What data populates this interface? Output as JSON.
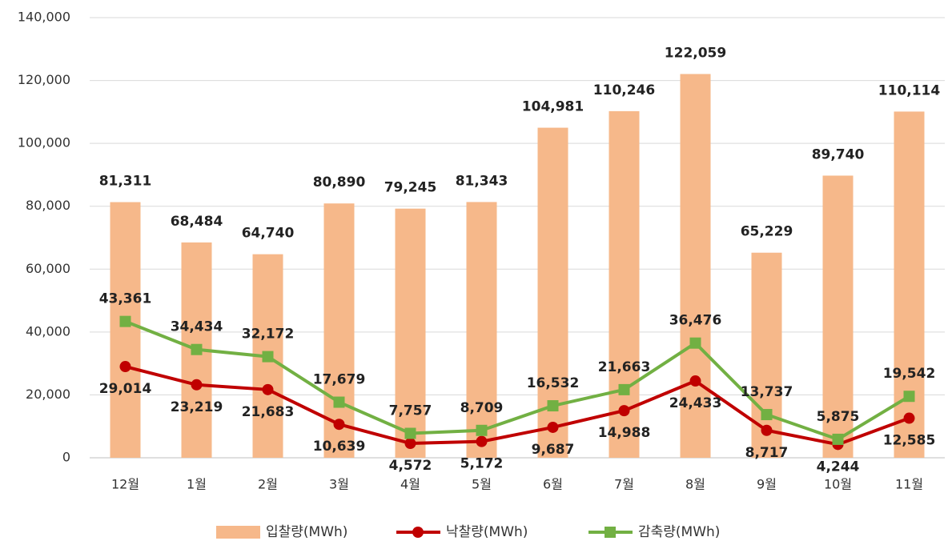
{
  "chart_data": {
    "type": "combo",
    "categories": [
      "12월",
      "1월",
      "2월",
      "3월",
      "4월",
      "5월",
      "6월",
      "7월",
      "8월",
      "9월",
      "10월",
      "11월"
    ],
    "series": [
      {
        "name": "입찰량(MWh)",
        "type": "bar",
        "color": "#f6b88a",
        "values": [
          81311,
          68484,
          64740,
          80890,
          79245,
          81343,
          104981,
          110246,
          122059,
          65229,
          89740,
          110114
        ],
        "value_labels": [
          "81,311",
          "68,484",
          "64,740",
          "80,890",
          "79,245",
          "81,343",
          "104,981",
          "110,246",
          "122,059",
          "65,229",
          "89,740",
          "110,114"
        ]
      },
      {
        "name": "낙찰량(MWh)",
        "type": "line",
        "color": "#c00000",
        "values": [
          29014,
          23219,
          21683,
          10639,
          4572,
          5172,
          9687,
          14988,
          24433,
          8717,
          4244,
          12585
        ],
        "value_labels": [
          "29,014",
          "23,219",
          "21,683",
          "10,639",
          "4,572",
          "5,172",
          "9,687",
          "14,988",
          "24,433",
          "8,717",
          "4,244",
          "12,585"
        ]
      },
      {
        "name": "감축량(MWh)",
        "type": "line",
        "color": "#72b043",
        "values": [
          43361,
          34434,
          32172,
          17679,
          7757,
          8709,
          16532,
          21663,
          36476,
          13737,
          5875,
          19542
        ],
        "value_labels": [
          "43,361",
          "34,434",
          "32,172",
          "17,679",
          "7,757",
          "8,709",
          "16,532",
          "21,663",
          "36,476",
          "13,737",
          "5,875",
          "19,542"
        ]
      }
    ],
    "ylim": [
      0,
      140000
    ],
    "yticks": [
      0,
      {
        "value": 20000,
        "label": "20,000"
      },
      {
        "value": 40000,
        "label": "40,000"
      },
      {
        "value": 60000,
        "label": "60,000"
      },
      {
        "value": 80000,
        "label": "80,000"
      },
      {
        "value": 100000,
        "label": "100,000"
      },
      {
        "value": 120000,
        "label": "120,000"
      },
      {
        "value": 140000,
        "label": "140,000"
      }
    ],
    "grid": true,
    "legend": "bottom"
  }
}
